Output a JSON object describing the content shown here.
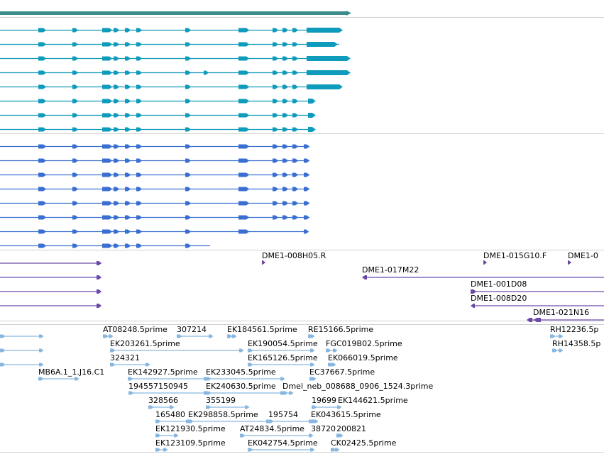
{
  "colors": {
    "summary": "#3c8c8c",
    "transcripts_a": "#0f9bbb",
    "transcripts_b": "#3a6fd1",
    "cdna_clones": "#6b4aa6",
    "ests": "#87b7e0",
    "separator": "#cfcfcf"
  },
  "cdna_clone_labels": {
    "l1": "DME1-008H05.R",
    "l2": "DME1-015G10.F",
    "l3": "DME1-0",
    "l4": "DME1-017M22",
    "l5": "DME1-001D08",
    "l6": "DME1-008D20",
    "l7": "DME1-021N16"
  },
  "est_labels": {
    "e1": "AT08248.5prime",
    "e2": "307214",
    "e3": "EK184561.5prime",
    "e4": "RE15166.5prime",
    "e5": "RH12236.5p",
    "e6": "EK203261.5prime",
    "e7": "EK190054.5prime",
    "e8": "FGC019B02.5prime",
    "e9": "RH14358.5p",
    "e10": "324321",
    "e11": "EK165126.5prime",
    "e12": "EK066019.5prime",
    "e13": "MB6A.1_1.J16.C1",
    "e14": "EK142927.5prime",
    "e15": "EK233045.5prime",
    "e16": "EC37667.5prime",
    "e17": "194557150945",
    "e18": "EK240630.5prime",
    "e19": "Dmel_neb_008688_0906_1524.3prime",
    "e20": "328566",
    "e21": "355199",
    "e22": "19699",
    "e23": "EK144621.5prime",
    "e24": "165480",
    "e25": "EK298858.5prime",
    "e26": "195754",
    "e27": "EK043615.5prime",
    "e28": "EK121930.5prime",
    "e29": "AT24834.5prime",
    "e30": "38720",
    "e31": "200821",
    "e32": "EK123109.5prime",
    "e33": "EK042754.5prime",
    "e34": "CK02425.5prime"
  }
}
